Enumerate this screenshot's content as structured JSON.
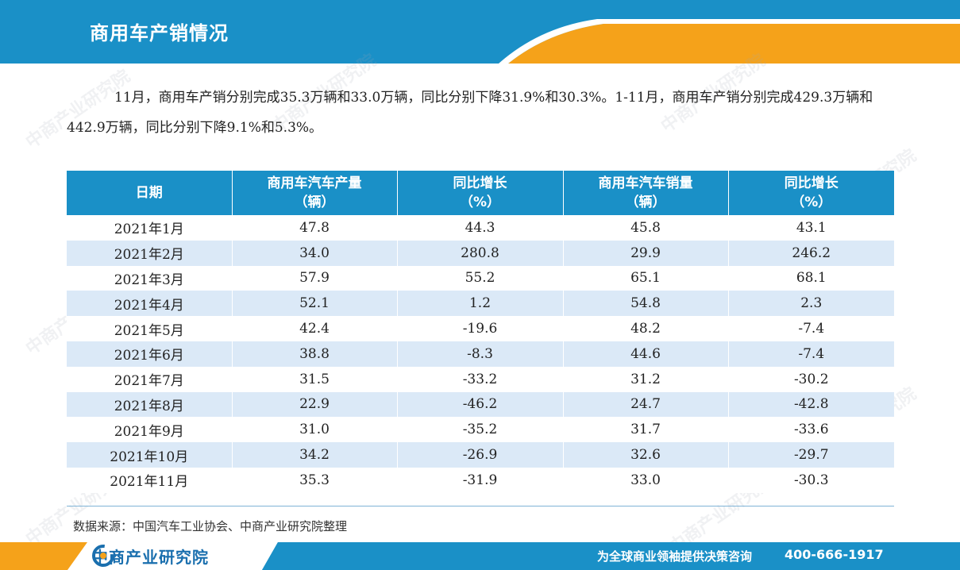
{
  "header": {
    "title": "商用车产销情况",
    "colors": {
      "band": "#1a90c7",
      "accent": "#f5a21a"
    }
  },
  "intro": {
    "text": "11月，商用车产销分别完成35.3万辆和33.0万辆，同比分别下降31.9%和30.3%。1-11月，商用车产销分别完成429.3万辆和442.9万辆，同比分别下降9.1%和5.3%。"
  },
  "table": {
    "headers": [
      {
        "line1": "日期",
        "line2": ""
      },
      {
        "line1": "商用车汽车产量",
        "line2": "（辆）"
      },
      {
        "line1": "同比增长",
        "line2": "（%）"
      },
      {
        "line1": "商用车汽车销量",
        "line2": "（辆）"
      },
      {
        "line1": "同比增长",
        "line2": "（%）"
      }
    ],
    "rows": [
      [
        "2021年1月",
        "47.8",
        "44.3",
        "45.8",
        "43.1"
      ],
      [
        "2021年2月",
        "34.0",
        "280.8",
        "29.9",
        "246.2"
      ],
      [
        "2021年3月",
        "57.9",
        "55.2",
        "65.1",
        "68.1"
      ],
      [
        "2021年4月",
        "52.1",
        "1.2",
        "54.8",
        "2.3"
      ],
      [
        "2021年5月",
        "42.4",
        "-19.6",
        "48.2",
        "-7.4"
      ],
      [
        "2021年6月",
        "38.8",
        "-8.3",
        "44.6",
        "-7.4"
      ],
      [
        "2021年7月",
        "31.5",
        "-33.2",
        "31.2",
        "-30.2"
      ],
      [
        "2021年8月",
        "22.9",
        "-46.2",
        "24.7",
        "-42.8"
      ],
      [
        "2021年9月",
        "31.0",
        "-35.2",
        "31.7",
        "-33.6"
      ],
      [
        "2021年10月",
        "34.2",
        "-26.9",
        "32.6",
        "-29.7"
      ],
      [
        "2021年11月",
        "35.3",
        "-31.9",
        "33.0",
        "-30.3"
      ]
    ]
  },
  "source": "数据来源：中国汽车工业协会、中商产业研究院整理",
  "footer": {
    "logo_text": "中商产业研究院",
    "slogan": "为全球商业领袖提供决策咨询",
    "phone": "400-666-1917",
    "logo_icon": "company-logo-icon"
  },
  "watermark": {
    "text": "中商产业研究院",
    "subtext": "www.askci.com/reports"
  }
}
